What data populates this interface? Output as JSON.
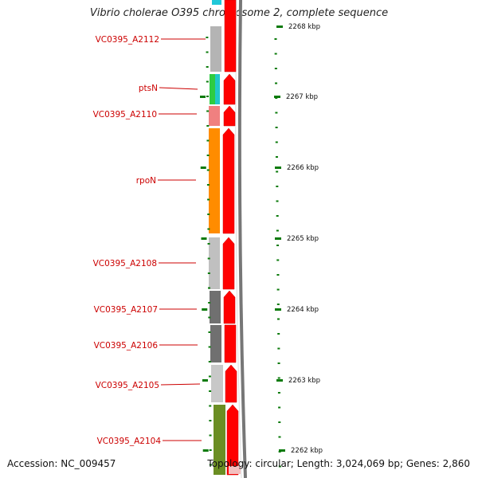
{
  "title": "Vibrio cholerae O395 chromosome 2, complete sequence",
  "footer": {
    "accession": "Accession: NC_009457",
    "info": "Topology: circular; Length: 3,024,069 bp; Genes: 2,860"
  },
  "colors": {
    "label": "#cc0000",
    "arrow": "#ff0000",
    "tick": "#0a7a0a",
    "backbone": "#777777"
  },
  "genes": [
    {
      "name": "VC0395_A2112",
      "color": "#b4b4b4"
    },
    {
      "name": "ptsN",
      "color": "#2ecc40"
    },
    {
      "name": "VC0395_A2110",
      "color": "#f08080"
    },
    {
      "name": "rpoN",
      "color": "#ff8c00"
    },
    {
      "name": "VC0395_A2108",
      "color": "#c0c0c0"
    },
    {
      "name": "VC0395_A2107",
      "color": "#707070"
    },
    {
      "name": "VC0395_A2106",
      "color": "#707070"
    },
    {
      "name": "VC0395_A2105",
      "color": "#c8c8c8"
    },
    {
      "name": "VC0395_A2104",
      "color": "#6b8e23"
    }
  ],
  "scale": [
    "2268 kbp",
    "2267 kbp",
    "2266 kbp",
    "2265 kbp",
    "2264 kbp",
    "2263 kbp",
    "2262 kbp"
  ]
}
